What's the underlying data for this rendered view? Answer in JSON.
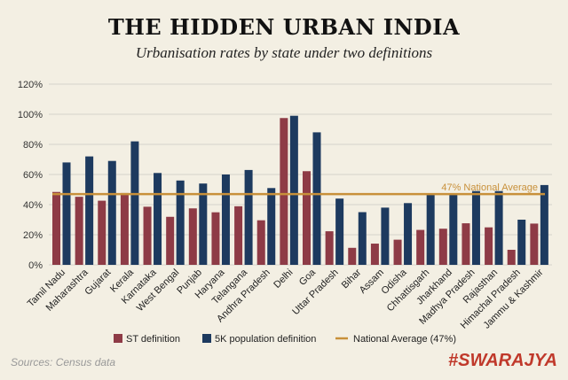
{
  "title": "THE HIDDEN URBAN INDIA",
  "subtitle": "Urbanisation rates by state under two definitions",
  "source": "Sources: Census data",
  "brand": "#SWARAJYA",
  "chart_data": {
    "type": "bar",
    "categories": [
      "Tamil Nadu",
      "Maharashtra",
      "Gujarat",
      "Kerala",
      "Karnataka",
      "West Bengal",
      "Punjab",
      "Haryana",
      "Telangana",
      "Andhra Pradesh",
      "Delhi",
      "Goa",
      "Uttar Pradesh",
      "Bihar",
      "Assam",
      "Odisha",
      "Chhattisgarh",
      "Jharkhand",
      "Madhya Pradesh",
      "Rajasthan",
      "Himachal Pradesh",
      "Jammu & Kashmir"
    ],
    "series": [
      {
        "name": "ST definition",
        "color": "#8e3b46",
        "values": [
          48.4,
          45.2,
          42.6,
          47.7,
          38.6,
          31.9,
          37.5,
          34.9,
          38.9,
          29.6,
          97.5,
          62.2,
          22.3,
          11.3,
          14.1,
          16.7,
          23.2,
          24.0,
          27.6,
          24.9,
          10.0,
          27.4
        ]
      },
      {
        "name": "5K population definition",
        "color": "#1d3a5f",
        "values": [
          68,
          72,
          69,
          82,
          61,
          56,
          54,
          60,
          63,
          51,
          99,
          88,
          44,
          35,
          38,
          41,
          47,
          47,
          49,
          49,
          30,
          53
        ]
      }
    ],
    "reference_line": {
      "name": "National Average (47%)",
      "value": 47,
      "label": "47% National Average",
      "color": "#c8903a"
    },
    "yticks": [
      "0%",
      "20%",
      "40%",
      "60%",
      "80%",
      "100%",
      "120%"
    ],
    "ylim": [
      0,
      120
    ],
    "grid": true,
    "legend": "bottom"
  }
}
